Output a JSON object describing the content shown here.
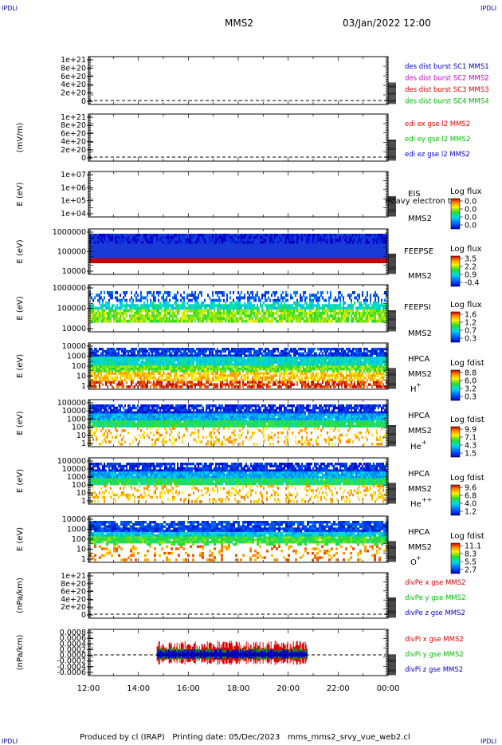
{
  "header": {
    "corner_tl": "IPDLI",
    "corner_tr": "IPDLI",
    "corner_bl": "IPDLI",
    "corner_br": "IPDLI",
    "title": "MMS2",
    "datetime": "03/Jan/2022 12:00"
  },
  "footer": {
    "text": "Produced by cl (IRAP)   Printing date: 05/Dec/2023   mms_mms2_srvy_vue_web2.cl"
  },
  "colors": {
    "blue": "#0000cc",
    "magenta": "#cc00cc",
    "red": "#dd0000",
    "green": "#00bb00",
    "feepse_band": "#1a3ad8",
    "feepse_low": "#cc0000"
  },
  "chart_data": {
    "type": "heatmap",
    "x_ticks": [
      "12:00",
      "14:00",
      "16:00",
      "18:00",
      "20:00",
      "22:00",
      "00:00"
    ],
    "panels": [
      {
        "id": "des-dist",
        "ylabel": "",
        "yticks": [
          "1e+21",
          "8e+20",
          "6e+20",
          "4e+20",
          "2e+20",
          "0"
        ],
        "legend": [
          {
            "text": "des dist burst SC1 MMS1",
            "color": "#0000cc"
          },
          {
            "text": "des dist burst SC2 MMS2",
            "color": "#cc00cc"
          },
          {
            "text": "des dist burst SC3 MMS3",
            "color": "#dd0000"
          },
          {
            "text": "des dist burst SC4 MMS4",
            "color": "#00bb00"
          }
        ]
      },
      {
        "id": "edi",
        "ylabel": "(mV/m)",
        "yticks": [
          "1e+21",
          "8e+20",
          "6e+20",
          "4e+20",
          "2e+20",
          "0"
        ],
        "legend": [
          {
            "text": "edi ex gse l2 MMS2",
            "color": "#dd0000"
          },
          {
            "text": "edi ey gse l2 MMS2",
            "color": "#00bb00"
          },
          {
            "text": "edi ez gse l2 MMS2",
            "color": "#0000cc"
          }
        ]
      },
      {
        "id": "eis",
        "ylabel": "E (eV)",
        "yticks": [
          "1e+07",
          "1e+06",
          "1e+05",
          "1e+04"
        ],
        "labels": [
          "EIS",
          "MMS2"
        ],
        "overlay_text": "Heavy electron to",
        "colorbar_title": "Log flux",
        "colorbar_ticks": [
          "0.0",
          "0.0",
          "0.0",
          "0.0"
        ]
      },
      {
        "id": "feepse",
        "ylabel": "E (eV)",
        "yticks": [
          "1000000",
          "100000",
          "10000"
        ],
        "labels": [
          "FEEPSE",
          "MMS2"
        ],
        "colorbar_title": "Log flux",
        "colorbar_ticks": [
          "3.5",
          "2.2",
          "0.9",
          "-0.4"
        ]
      },
      {
        "id": "feepsi",
        "ylabel": "E (eV)",
        "yticks": [
          "1000000",
          "100000",
          "10000"
        ],
        "labels": [
          "FEEPSI",
          "MMS2"
        ],
        "colorbar_title": "Log flux",
        "colorbar_ticks": [
          "1.6",
          "1.2",
          "0.7",
          "0.3"
        ]
      },
      {
        "id": "hpca-h",
        "ylabel": "E (eV)",
        "yticks": [
          "10000",
          "1000",
          "100",
          "10",
          "1"
        ],
        "labels": [
          "HPCA",
          "MMS2"
        ],
        "species": "H",
        "species_sup": "+",
        "colorbar_title": "Log fdist",
        "colorbar_ticks": [
          "8.8",
          "6.0",
          "3.2",
          "0.3"
        ]
      },
      {
        "id": "hpca-he",
        "ylabel": "E (eV)",
        "yticks": [
          "100000",
          "10000",
          "1000",
          "100",
          "10",
          "1"
        ],
        "labels": [
          "HPCA",
          "MMS2"
        ],
        "species": "He",
        "species_sup": "+",
        "colorbar_title": "Log fdist",
        "colorbar_ticks": [
          "9.9",
          "7.1",
          "4.3",
          "1.5"
        ]
      },
      {
        "id": "hpca-hepp",
        "ylabel": "E (eV)",
        "yticks": [
          "100000",
          "10000",
          "1000",
          "100",
          "10",
          "1"
        ],
        "labels": [
          "HPCA",
          "MMS2"
        ],
        "species": "He",
        "species_sup": "++",
        "colorbar_title": "Log fdist",
        "colorbar_ticks": [
          "9.6",
          "6.8",
          "4.0",
          "1.2"
        ]
      },
      {
        "id": "hpca-o",
        "ylabel": "E (eV)",
        "yticks": [
          "10000",
          "1000",
          "100",
          "10",
          "1"
        ],
        "labels": [
          "HPCA",
          "MMS2"
        ],
        "species": "O",
        "species_sup": "+",
        "colorbar_title": "Log fdist",
        "colorbar_ticks": [
          "11.1",
          "8.3",
          "5.5",
          "2.7"
        ]
      },
      {
        "id": "divpe",
        "ylabel": "(nPa/km)",
        "yticks": [
          "1e+21",
          "8e+20",
          "6e+20",
          "4e+20",
          "2e+20",
          "0"
        ],
        "legend": [
          {
            "text": "divPe x gse MMS2",
            "color": "#dd0000"
          },
          {
            "text": "divPe y gse MMS2",
            "color": "#00bb00"
          },
          {
            "text": "divPe z gse MMS2",
            "color": "#0000cc"
          }
        ]
      },
      {
        "id": "divpi",
        "ylabel": "(nPa/km)",
        "yticks": [
          "0.0008",
          "0.0006",
          "0.0004",
          "0.0002",
          "0.0000",
          "-0.0002",
          "-0.0004",
          "-0.0006"
        ],
        "legend": [
          {
            "text": "divPi x gse MMS2",
            "color": "#dd0000"
          },
          {
            "text": "divPi y gse MMS2",
            "color": "#00bb00"
          },
          {
            "text": "divPi z gse MMS2",
            "color": "#0000cc"
          }
        ],
        "data_time_range": [
          "14:45",
          "20:45"
        ]
      }
    ]
  }
}
